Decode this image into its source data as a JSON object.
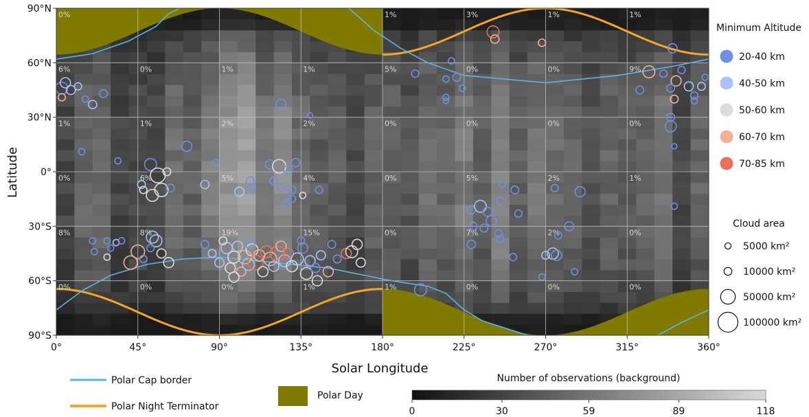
{
  "chart_data": {
    "type": "heatmap",
    "xlabel": "Solar Longitude",
    "ylabel": "Latitude",
    "xlim": [
      0,
      360
    ],
    "ylim": [
      -90,
      90
    ],
    "x_ticks": [
      "0°",
      "45°",
      "90°",
      "135°",
      "180°",
      "225°",
      "270°",
      "315°",
      "360°"
    ],
    "y_ticks": [
      "90°S",
      "60°S",
      "30°S",
      "0°",
      "30°N",
      "60°N",
      "90°N"
    ],
    "grid": true,
    "colorbar": {
      "title": "Number of observations (background)",
      "ticks": [
        "0",
        "30",
        "59",
        "89",
        "118"
      ],
      "range": [
        0,
        118
      ]
    },
    "cell_percentages": {
      "x_starts": [
        0,
        45,
        90,
        135,
        180,
        225,
        270,
        315
      ],
      "rows": [
        {
          "lat_top": 90,
          "values": [
            "0%",
            "",
            "",
            "",
            "1%",
            "3%",
            "1%",
            "1%"
          ]
        },
        {
          "lat_top": 60,
          "values": [
            "6%",
            "0%",
            "1%",
            "1%",
            "5%",
            "0%",
            "0%",
            "9%"
          ]
        },
        {
          "lat_top": 30,
          "values": [
            "1%",
            "1%",
            "2%",
            "2%",
            "0%",
            "0%",
            "0%",
            "0%"
          ]
        },
        {
          "lat_top": 0,
          "values": [
            "0%",
            "6%",
            "5%",
            "4%",
            "0%",
            "5%",
            "2%",
            "1%"
          ]
        },
        {
          "lat_top": -30,
          "values": [
            "8%",
            "8%",
            "19%",
            "15%",
            "0%",
            "7%",
            "2%",
            "0%"
          ]
        },
        {
          "lat_top": -60,
          "values": [
            "0%",
            "0%",
            "0%",
            "1%",
            "1%",
            "0%",
            "0%",
            "0%"
          ]
        }
      ]
    },
    "legend": {
      "altitude_title": "Minimum Altitude",
      "altitude_items": [
        {
          "label": "20-40 km",
          "color": "#6f8fe6"
        },
        {
          "label": "40-50 km",
          "color": "#a8c4f8"
        },
        {
          "label": "50-60 km",
          "color": "#dcdcdc"
        },
        {
          "label": "60-70 km",
          "color": "#f4b095"
        },
        {
          "label": "70-85 km",
          "color": "#e8715a"
        }
      ],
      "size_title": "Cloud area",
      "size_items": [
        {
          "label": "5000 km²",
          "area": 5000
        },
        {
          "label": "10000 km²",
          "area": 10000
        },
        {
          "label": "50000 km²",
          "area": 50000
        },
        {
          "label": "100000 km²",
          "area": 100000
        }
      ],
      "lines": [
        {
          "label": "Polar Cap border",
          "color": "#5db3ea"
        },
        {
          "label": "Polar Night Terminator",
          "color": "#f2a62a"
        }
      ],
      "patch": {
        "label": "Polar Day",
        "color": "#817a00"
      }
    },
    "clouds": [
      {
        "x": 3,
        "y": 46,
        "area": 30000,
        "alt": 0
      },
      {
        "x": 5,
        "y": 49,
        "area": 20000,
        "alt": 1
      },
      {
        "x": 8,
        "y": 45,
        "area": 15000,
        "alt": 1
      },
      {
        "x": 3,
        "y": 41,
        "area": 8000,
        "alt": 3
      },
      {
        "x": 12,
        "y": 47,
        "area": 8000,
        "alt": 1
      },
      {
        "x": 16,
        "y": 40,
        "area": 5000,
        "alt": 0
      },
      {
        "x": 20,
        "y": 37,
        "area": 12000,
        "alt": 1
      },
      {
        "x": 26,
        "y": 43,
        "area": 10000,
        "alt": 0
      },
      {
        "x": 14,
        "y": 11,
        "area": 5000,
        "alt": 0
      },
      {
        "x": 34,
        "y": 6,
        "area": 5000,
        "alt": 0
      },
      {
        "x": 20,
        "y": -38,
        "area": 5000,
        "alt": 0
      },
      {
        "x": 21,
        "y": -44,
        "area": 5000,
        "alt": 0
      },
      {
        "x": 28,
        "y": -38,
        "area": 5000,
        "alt": 0
      },
      {
        "x": 30,
        "y": -42,
        "area": 5000,
        "alt": 0
      },
      {
        "x": 28,
        "y": -47,
        "area": 5000,
        "alt": 2
      },
      {
        "x": 33,
        "y": -39,
        "area": 5000,
        "alt": 1
      },
      {
        "x": 36,
        "y": -38,
        "area": 5000,
        "alt": 0
      },
      {
        "x": 45,
        "y": -44,
        "area": 40000,
        "alt": 3
      },
      {
        "x": 41,
        "y": -50,
        "area": 40000,
        "alt": 3
      },
      {
        "x": 48,
        "y": -48,
        "area": 8000,
        "alt": 0
      },
      {
        "x": 53,
        "y": -36,
        "area": 30000,
        "alt": 1
      },
      {
        "x": 55,
        "y": -38,
        "area": 30000,
        "alt": 1
      },
      {
        "x": 58,
        "y": -45,
        "area": 15000,
        "alt": 2
      },
      {
        "x": 52,
        "y": -42,
        "area": 8000,
        "alt": 0
      },
      {
        "x": 62,
        "y": -50,
        "area": 20000,
        "alt": 2
      },
      {
        "x": 52,
        "y": 4,
        "area": 30000,
        "alt": 0
      },
      {
        "x": 56,
        "y": -2,
        "area": 50000,
        "alt": 2
      },
      {
        "x": 58,
        "y": -10,
        "area": 40000,
        "alt": 2
      },
      {
        "x": 53,
        "y": -13,
        "area": 30000,
        "alt": 2
      },
      {
        "x": 61,
        "y": 0,
        "area": 10000,
        "alt": 2
      },
      {
        "x": 47,
        "y": -7,
        "area": 10000,
        "alt": 1
      },
      {
        "x": 63,
        "y": -9,
        "area": 10000,
        "alt": 0
      },
      {
        "x": 48,
        "y": -10,
        "area": 8000,
        "alt": 2
      },
      {
        "x": 72,
        "y": 14,
        "area": 20000,
        "alt": 0
      },
      {
        "x": 88,
        "y": 5,
        "area": 5000,
        "alt": 0
      },
      {
        "x": 82,
        "y": -7,
        "area": 12000,
        "alt": 1
      },
      {
        "x": 101,
        "y": -11,
        "area": 15000,
        "alt": 1
      },
      {
        "x": 107,
        "y": -5,
        "area": 10000,
        "alt": 0
      },
      {
        "x": 108,
        "y": -9,
        "area": 8000,
        "alt": 0
      },
      {
        "x": 118,
        "y": 4,
        "area": 15000,
        "alt": 0
      },
      {
        "x": 123,
        "y": 3,
        "area": 40000,
        "alt": 2
      },
      {
        "x": 128,
        "y": 1,
        "area": 15000,
        "alt": 0
      },
      {
        "x": 132,
        "y": 5,
        "area": 12000,
        "alt": 0
      },
      {
        "x": 120,
        "y": -5,
        "area": 10000,
        "alt": 0
      },
      {
        "x": 124,
        "y": -9,
        "area": 8000,
        "alt": 0
      },
      {
        "x": 130,
        "y": -10,
        "area": 10000,
        "alt": 0
      },
      {
        "x": 136,
        "y": -13,
        "area": 5000,
        "alt": 2
      },
      {
        "x": 130,
        "y": -15,
        "area": 8000,
        "alt": 0
      },
      {
        "x": 145,
        "y": -10,
        "area": 8000,
        "alt": 0
      },
      {
        "x": 124,
        "y": 37,
        "area": 20000,
        "alt": 0
      },
      {
        "x": 140,
        "y": 31,
        "area": 3000,
        "alt": 0
      },
      {
        "x": 127,
        "y": -18,
        "area": 10000,
        "alt": 0
      },
      {
        "x": 82,
        "y": -40,
        "area": 10000,
        "alt": 0
      },
      {
        "x": 86,
        "y": -45,
        "area": 10000,
        "alt": 1
      },
      {
        "x": 90,
        "y": -50,
        "area": 15000,
        "alt": 1
      },
      {
        "x": 94,
        "y": -42,
        "area": 25000,
        "alt": 1
      },
      {
        "x": 96,
        "y": -53,
        "area": 20000,
        "alt": 2
      },
      {
        "x": 98,
        "y": -47,
        "area": 30000,
        "alt": 2
      },
      {
        "x": 100,
        "y": -41,
        "area": 20000,
        "alt": 1
      },
      {
        "x": 102,
        "y": -55,
        "area": 15000,
        "alt": 3
      },
      {
        "x": 104,
        "y": -47,
        "area": 40000,
        "alt": 3
      },
      {
        "x": 106,
        "y": -51,
        "area": 30000,
        "alt": 1
      },
      {
        "x": 108,
        "y": -43,
        "area": 30000,
        "alt": 2
      },
      {
        "x": 110,
        "y": -50,
        "area": 50000,
        "alt": 4
      },
      {
        "x": 112,
        "y": -46,
        "area": 25000,
        "alt": 3
      },
      {
        "x": 114,
        "y": -55,
        "area": 20000,
        "alt": 2
      },
      {
        "x": 116,
        "y": -44,
        "area": 30000,
        "alt": 4
      },
      {
        "x": 118,
        "y": -48,
        "area": 40000,
        "alt": 3
      },
      {
        "x": 120,
        "y": -52,
        "area": 20000,
        "alt": 1
      },
      {
        "x": 122,
        "y": -45,
        "area": 50000,
        "alt": 4
      },
      {
        "x": 124,
        "y": -41,
        "area": 20000,
        "alt": 3
      },
      {
        "x": 126,
        "y": -49,
        "area": 30000,
        "alt": 1
      },
      {
        "x": 128,
        "y": -45,
        "area": 20000,
        "alt": 4
      },
      {
        "x": 130,
        "y": -52,
        "area": 25000,
        "alt": 2
      },
      {
        "x": 133,
        "y": -48,
        "area": 30000,
        "alt": 1
      },
      {
        "x": 136,
        "y": -42,
        "area": 20000,
        "alt": 0
      },
      {
        "x": 138,
        "y": -56,
        "area": 30000,
        "alt": 2
      },
      {
        "x": 140,
        "y": -49,
        "area": 20000,
        "alt": 1
      },
      {
        "x": 143,
        "y": -53,
        "area": 15000,
        "alt": 0
      },
      {
        "x": 146,
        "y": -46,
        "area": 15000,
        "alt": 1
      },
      {
        "x": 150,
        "y": -55,
        "area": 20000,
        "alt": 3
      },
      {
        "x": 152,
        "y": -40,
        "area": 10000,
        "alt": 0
      },
      {
        "x": 155,
        "y": -48,
        "area": 10000,
        "alt": 0
      },
      {
        "x": 160,
        "y": -45,
        "area": 20000,
        "alt": 4
      },
      {
        "x": 163,
        "y": -44,
        "area": 30000,
        "alt": 2
      },
      {
        "x": 166,
        "y": -40,
        "area": 20000,
        "alt": 2
      },
      {
        "x": 168,
        "y": -50,
        "area": 15000,
        "alt": 2
      },
      {
        "x": 144,
        "y": -60,
        "area": 20000,
        "alt": 2
      },
      {
        "x": 98,
        "y": -58,
        "area": 20000,
        "alt": 2
      },
      {
        "x": 92,
        "y": -38,
        "area": 10000,
        "alt": 2
      },
      {
        "x": 107,
        "y": -40,
        "area": 15000,
        "alt": 0
      },
      {
        "x": 135,
        "y": -38,
        "area": 8000,
        "alt": 0
      },
      {
        "x": 198,
        "y": 54,
        "area": 8000,
        "alt": 0
      },
      {
        "x": 201,
        "y": -65,
        "area": 30000,
        "alt": 0
      },
      {
        "x": 218,
        "y": 61,
        "area": 5000,
        "alt": 0
      },
      {
        "x": 215,
        "y": 51,
        "area": 5000,
        "alt": 0
      },
      {
        "x": 215,
        "y": 41,
        "area": 5000,
        "alt": 0
      },
      {
        "x": 221,
        "y": 52,
        "area": 10000,
        "alt": 0
      },
      {
        "x": 224,
        "y": 46,
        "area": 5000,
        "alt": 0
      },
      {
        "x": 215,
        "y": 39,
        "area": 3000,
        "alt": 0
      },
      {
        "x": 241,
        "y": 77,
        "area": 30000,
        "alt": 4
      },
      {
        "x": 242,
        "y": 73,
        "area": 12000,
        "alt": 3
      },
      {
        "x": 268,
        "y": 71,
        "area": 8000,
        "alt": 3
      },
      {
        "x": 229,
        "y": -21,
        "area": 12000,
        "alt": 0
      },
      {
        "x": 234,
        "y": -19,
        "area": 30000,
        "alt": 1
      },
      {
        "x": 238,
        "y": -22,
        "area": 15000,
        "alt": 0
      },
      {
        "x": 245,
        "y": -16,
        "area": 8000,
        "alt": 0
      },
      {
        "x": 246,
        "y": -7,
        "area": 5000,
        "alt": 0
      },
      {
        "x": 253,
        "y": -10,
        "area": 10000,
        "alt": 0
      },
      {
        "x": 240,
        "y": -27,
        "area": 20000,
        "alt": 0
      },
      {
        "x": 230,
        "y": -30,
        "area": 10000,
        "alt": 0
      },
      {
        "x": 236,
        "y": -31,
        "area": 10000,
        "alt": 0
      },
      {
        "x": 244,
        "y": -34,
        "area": 8000,
        "alt": 0
      },
      {
        "x": 229,
        "y": -40,
        "area": 12000,
        "alt": 0
      },
      {
        "x": 252,
        "y": -47,
        "area": 8000,
        "alt": 0
      },
      {
        "x": 245,
        "y": -37,
        "area": 8000,
        "alt": 0
      },
      {
        "x": 255,
        "y": -23,
        "area": 8000,
        "alt": 0
      },
      {
        "x": 275,
        "y": -9,
        "area": 8000,
        "alt": 0
      },
      {
        "x": 289,
        "y": -11,
        "area": 20000,
        "alt": 0
      },
      {
        "x": 283,
        "y": -30,
        "area": 15000,
        "alt": 0
      },
      {
        "x": 277,
        "y": -35,
        "area": 8000,
        "alt": 0
      },
      {
        "x": 274,
        "y": -45,
        "area": 25000,
        "alt": 1
      },
      {
        "x": 276,
        "y": -46,
        "area": 20000,
        "alt": 0
      },
      {
        "x": 270,
        "y": -46,
        "area": 10000,
        "alt": 1
      },
      {
        "x": 268,
        "y": -58,
        "area": 5000,
        "alt": 0
      },
      {
        "x": 286,
        "y": -55,
        "area": 5000,
        "alt": 0
      },
      {
        "x": 322,
        "y": 45,
        "area": 10000,
        "alt": 0
      },
      {
        "x": 327,
        "y": 55,
        "area": 30000,
        "alt": 3
      },
      {
        "x": 340,
        "y": 68,
        "area": 15000,
        "alt": 0
      },
      {
        "x": 335,
        "y": 54,
        "area": 8000,
        "alt": 0
      },
      {
        "x": 342,
        "y": 50,
        "area": 20000,
        "alt": 3
      },
      {
        "x": 345,
        "y": 56,
        "area": 8000,
        "alt": 0
      },
      {
        "x": 349,
        "y": 47,
        "area": 15000,
        "alt": 1
      },
      {
        "x": 352,
        "y": 42,
        "area": 8000,
        "alt": 0
      },
      {
        "x": 356,
        "y": 47,
        "area": 10000,
        "alt": 1
      },
      {
        "x": 358,
        "y": 52,
        "area": 5000,
        "alt": 0
      },
      {
        "x": 339,
        "y": 46,
        "area": 10000,
        "alt": 0
      },
      {
        "x": 341,
        "y": 40,
        "area": 10000,
        "alt": 3
      },
      {
        "x": 339,
        "y": 25,
        "area": 25000,
        "alt": 0
      },
      {
        "x": 339,
        "y": 30,
        "area": 10000,
        "alt": 0
      },
      {
        "x": 341,
        "y": 14,
        "area": 3000,
        "alt": 0
      },
      {
        "x": 341,
        "y": -19,
        "area": 5000,
        "alt": 0
      },
      {
        "x": 352,
        "y": 39,
        "area": 5000,
        "alt": 0
      }
    ]
  }
}
